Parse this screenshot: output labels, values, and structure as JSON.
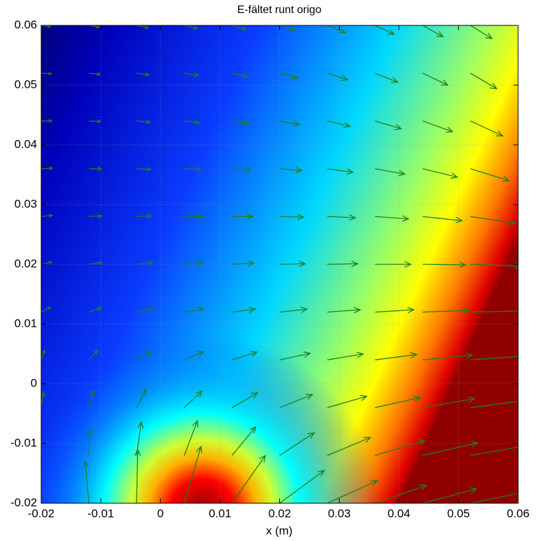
{
  "chart_data": {
    "type": "quiver",
    "title": "E-fältet runt origo",
    "xlabel": "x (m)",
    "xlim": [
      -0.02,
      0.06
    ],
    "ylim": [
      -0.02,
      0.06
    ],
    "xticks": [
      -0.02,
      -0.01,
      0,
      0.01,
      0.02,
      0.03,
      0.04,
      0.05,
      0.06
    ],
    "yticks": [
      -0.02,
      -0.01,
      0,
      0.01,
      0.02,
      0.03,
      0.04,
      0.05,
      0.06
    ],
    "grid": true,
    "color": "#1f7f1f",
    "x": [
      -0.02,
      -0.012,
      -0.004,
      0.004,
      0.012,
      0.02,
      0.028,
      0.036,
      0.044,
      0.052,
      0.06
    ],
    "y": [
      0.06,
      0.052,
      0.044,
      0.036,
      0.028,
      0.02,
      0.012,
      0.004,
      -0.004,
      -0.012,
      -0.02
    ],
    "u": [
      [
        0.0016,
        0.0018,
        0.002,
        0.0022,
        0.0024,
        0.0026,
        0.003,
        0.0032,
        0.0034,
        0.0036,
        0.0036
      ],
      [
        0.0017,
        0.0019,
        0.0021,
        0.0024,
        0.0027,
        0.003,
        0.0034,
        0.0038,
        0.0042,
        0.0044,
        0.0044
      ],
      [
        0.0018,
        0.002,
        0.0023,
        0.0026,
        0.0029,
        0.0033,
        0.0038,
        0.0044,
        0.005,
        0.0054,
        0.0056
      ],
      [
        0.0019,
        0.0021,
        0.0024,
        0.0028,
        0.0032,
        0.0037,
        0.0043,
        0.005,
        0.0058,
        0.0065,
        0.007
      ],
      [
        0.0019,
        0.0022,
        0.0025,
        0.003,
        0.0035,
        0.004,
        0.0047,
        0.0056,
        0.0066,
        0.0076,
        0.0085
      ],
      [
        0.0018,
        0.0022,
        0.0026,
        0.0031,
        0.0037,
        0.0043,
        0.0051,
        0.006,
        0.0072,
        0.0085,
        0.0098
      ],
      [
        0.0016,
        0.0021,
        0.0026,
        0.0032,
        0.0039,
        0.0046,
        0.0055,
        0.0065,
        0.0078,
        0.0092,
        0.0108
      ],
      [
        0.0006,
        0.0015,
        0.0025,
        0.0033,
        0.0042,
        0.0051,
        0.006,
        0.007,
        0.0083,
        0.0096,
        0.011
      ],
      [
        0.0004,
        0.0008,
        0.0016,
        0.003,
        0.0043,
        0.0055,
        0.0066,
        0.0076,
        0.0087,
        0.0098,
        0.011
      ],
      [
        -0.0003,
        0.0002,
        0.0008,
        0.0022,
        0.004,
        0.0058,
        0.0072,
        0.0083,
        0.0092,
        0.0102,
        0.0112
      ],
      [
        -0.0008,
        -0.0006,
        0.0002,
        0.0028,
        0.0056,
        0.0075,
        0.0084,
        0.0086,
        0.009,
        0.0096,
        0.0104
      ]
    ],
    "v": [
      [
        -0.0002,
        -0.0003,
        -0.0004,
        -0.0005,
        -0.0007,
        -0.0009,
        -0.0012,
        -0.0015,
        -0.0019,
        -0.0022,
        -0.0024
      ],
      [
        -0.0001,
        -0.0002,
        -0.0003,
        -0.0004,
        -0.0006,
        -0.0008,
        -0.0011,
        -0.0015,
        -0.002,
        -0.0026,
        -0.003
      ],
      [
        0,
        -0.0001,
        -0.0002,
        -0.0003,
        -0.0004,
        -0.0006,
        -0.0009,
        -0.0013,
        -0.0018,
        -0.0025,
        -0.0032
      ],
      [
        0.0001,
        0,
        -0.0001,
        -0.0001,
        -0.0002,
        -0.0003,
        -0.0006,
        -0.0009,
        -0.0014,
        -0.002,
        -0.0028
      ],
      [
        0.0002,
        0.0001,
        0.0001,
        0,
        0,
        -0.0001,
        -0.0002,
        -0.0004,
        -0.0007,
        -0.0011,
        -0.0016
      ],
      [
        0.0004,
        0.0003,
        0.0003,
        0.0002,
        0.0002,
        0.0001,
        0.0001,
        0,
        -0.0001,
        -0.0003,
        -0.0005
      ],
      [
        0.0008,
        0.0007,
        0.0006,
        0.0006,
        0.0005,
        0.0005,
        0.0004,
        0.0004,
        0.0003,
        0.0002,
        0.0002
      ],
      [
        0.0016,
        0.0016,
        0.0015,
        0.0014,
        0.0013,
        0.0011,
        0.001,
        0.0009,
        0.0008,
        0.0007,
        0.0006
      ],
      [
        0.0026,
        0.0029,
        0.003,
        0.0028,
        0.0025,
        0.0022,
        0.0019,
        0.0017,
        0.0015,
        0.0013,
        0.0011
      ],
      [
        0.0028,
        0.0043,
        0.0056,
        0.0058,
        0.0048,
        0.0038,
        0.003,
        0.0025,
        0.0021,
        0.0018,
        0.0015
      ],
      [
        0.005,
        0.007,
        0.009,
        0.0095,
        0.008,
        0.0055,
        0.0038,
        0.003,
        0.0024,
        0.002,
        0.0017
      ]
    ]
  }
}
